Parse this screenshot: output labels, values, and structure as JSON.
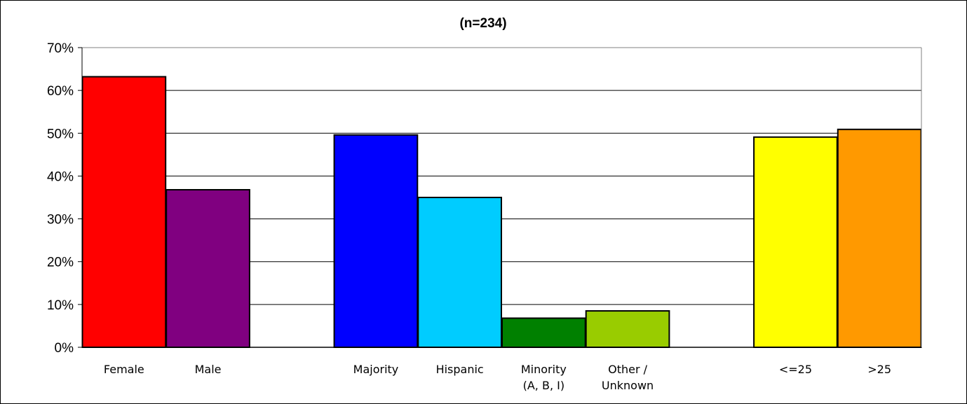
{
  "chart_data": {
    "type": "bar",
    "title": "(n=234)",
    "xlabel": "",
    "ylabel": "",
    "ylim": [
      0,
      70
    ],
    "y_ticks": [
      "0%",
      "10%",
      "20%",
      "30%",
      "40%",
      "50%",
      "60%",
      "70%"
    ],
    "grid": true,
    "legend": "none",
    "groups": [
      {
        "bars": [
          {
            "label": [
              "Female"
            ],
            "value": 63.2,
            "color": "#ff0000"
          },
          {
            "label": [
              "Male"
            ],
            "value": 36.8,
            "color": "#800080"
          }
        ]
      },
      {
        "bars": [
          {
            "label": [
              "Majority"
            ],
            "value": 49.6,
            "color": "#0000ff"
          },
          {
            "label": [
              "Hispanic"
            ],
            "value": 35.0,
            "color": "#00ccff"
          },
          {
            "label": [
              "Minority",
              "(A, B, I)"
            ],
            "value": 6.8,
            "color": "#008000"
          },
          {
            "label": [
              "Other /",
              "Unknown"
            ],
            "value": 8.5,
            "color": "#99cc00"
          }
        ]
      },
      {
        "bars": [
          {
            "label": [
              "<=25"
            ],
            "value": 49.1,
            "color": "#ffff00"
          },
          {
            "label": [
              ">25"
            ],
            "value": 50.9,
            "color": "#ff9900"
          }
        ]
      }
    ]
  }
}
